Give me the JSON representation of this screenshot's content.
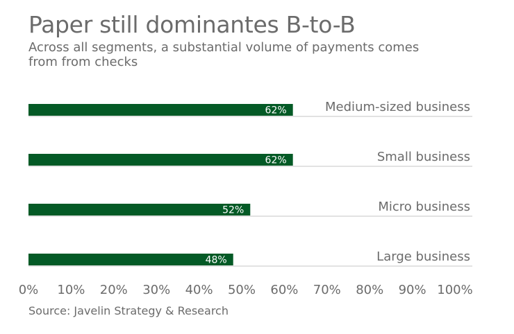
{
  "chart_data": {
    "type": "bar",
    "orientation": "horizontal",
    "title": "Paper still dominantes B-to-B",
    "subtitle": "Across all segments, a substantial volume of payments comes from from checks",
    "categories": [
      "Medium-sized business",
      "Small business",
      "Micro business",
      "Large business"
    ],
    "values": [
      62,
      62,
      52,
      48
    ],
    "data_labels": [
      "62%",
      "62%",
      "52%",
      "48%"
    ],
    "xlim": [
      0,
      100
    ],
    "x_ticks": [
      "0%",
      "10%",
      "20%",
      "30%",
      "40%",
      "50%",
      "60%",
      "70%",
      "80%",
      "90%",
      "100%"
    ],
    "grid": false,
    "legend": "none",
    "source": "Source: Javelin Strategy & Research",
    "colors": {
      "bar": "#045a26",
      "baseline": "#d0d0d0",
      "text": "#6b6b6b",
      "data_label": "#ffffff"
    }
  }
}
